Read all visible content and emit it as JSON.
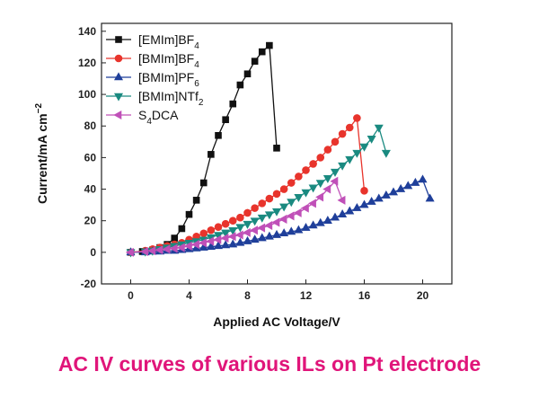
{
  "caption": "AC IV curves of various ILs on Pt electrode",
  "chart_data": {
    "type": "line",
    "xlabel": "Applied AC Voltage/V",
    "ylabel_main": "Current/mA cm",
    "ylabel_sup": "−2",
    "xlim": [
      -2,
      22
    ],
    "ylim": [
      -20,
      145
    ],
    "xticks": [
      0,
      4,
      8,
      12,
      16,
      20
    ],
    "yticks": [
      -20,
      0,
      20,
      40,
      60,
      80,
      100,
      120,
      140
    ],
    "legend_position": "top-left",
    "grid": false,
    "series": [
      {
        "name": "[EMIm]BF",
        "name_sub": "4",
        "name_tail": "",
        "color": "#111111",
        "marker": "square",
        "x": [
          0,
          0.8,
          1.5,
          2,
          2.5,
          3,
          3.5,
          4,
          4.5,
          5,
          5.5,
          6,
          6.5,
          7,
          7.5,
          8,
          8.5,
          9,
          9.5,
          10
        ],
        "y": [
          0,
          0.5,
          1.5,
          3,
          5,
          9,
          15,
          24,
          33,
          44,
          62,
          74,
          84,
          94,
          106,
          113,
          121,
          127,
          131,
          66
        ]
      },
      {
        "name": "[BMIm]BF",
        "name_sub": "4",
        "name_tail": "",
        "color": "#e8342c",
        "marker": "circle",
        "x": [
          0,
          1,
          1.5,
          2,
          2.5,
          3,
          3.5,
          4,
          4.5,
          5,
          5.5,
          6,
          6.5,
          7,
          7.5,
          8,
          8.5,
          9,
          9.5,
          10,
          10.5,
          11,
          11.5,
          12,
          12.5,
          13,
          13.5,
          14,
          14.5,
          15,
          15.5,
          16
        ],
        "y": [
          0,
          1,
          2,
          3,
          4,
          5,
          6,
          8,
          10,
          12,
          14,
          16,
          18,
          20,
          22,
          25,
          28,
          31,
          34,
          37,
          40,
          44,
          48,
          52,
          56,
          60,
          65,
          70,
          75,
          79,
          85,
          39
        ]
      },
      {
        "name": "[BMIm]PF",
        "name_sub": "6",
        "name_tail": "",
        "color": "#1f3f9a",
        "marker": "triangle-up",
        "x": [
          0,
          1,
          1.5,
          2,
          2.5,
          3,
          3.5,
          4,
          4.5,
          5,
          5.5,
          6,
          6.5,
          7,
          7.5,
          8,
          8.5,
          9,
          9.5,
          10,
          10.5,
          11,
          11.5,
          12,
          12.5,
          13,
          13.5,
          14,
          14.5,
          15,
          15.5,
          16,
          16.5,
          17,
          17.5,
          18,
          18.5,
          19,
          19.5,
          20,
          20.5
        ],
        "y": [
          0,
          0,
          0.5,
          0.5,
          1,
          1,
          1.5,
          2,
          2.5,
          3,
          3.5,
          4,
          4.5,
          5,
          6,
          7,
          8,
          9,
          10,
          11,
          12,
          13,
          14,
          15.5,
          17,
          18.5,
          20,
          22,
          24,
          26,
          28,
          30,
          32,
          34,
          36,
          38,
          40,
          42,
          44,
          46,
          34
        ]
      },
      {
        "name": "[BMIm]NTf",
        "name_sub": "2",
        "name_tail": "",
        "color": "#1a8a80",
        "marker": "triangle-down",
        "x": [
          0,
          1,
          1.5,
          2,
          2.5,
          3,
          3.5,
          4,
          4.5,
          5,
          5.5,
          6,
          6.5,
          7,
          7.5,
          8,
          8.5,
          9,
          9.5,
          10,
          10.5,
          11,
          11.5,
          12,
          12.5,
          13,
          13.5,
          14,
          14.5,
          15,
          15.5,
          16,
          16.5,
          17,
          17.5
        ],
        "y": [
          0,
          0.5,
          1,
          2,
          3,
          4,
          5,
          6,
          7,
          8,
          9.5,
          11,
          12.5,
          14,
          16,
          18,
          20,
          22,
          24,
          26,
          29,
          32,
          35,
          38,
          41,
          44,
          47,
          51,
          55,
          59,
          63,
          67,
          72,
          79,
          63
        ]
      },
      {
        "name": "S",
        "name_sub": "4",
        "name_tail": "DCA",
        "color": "#c050b8",
        "marker": "triangle-left",
        "x": [
          0,
          1,
          1.5,
          2,
          2.5,
          3,
          3.5,
          4,
          4.5,
          5,
          5.5,
          6,
          6.5,
          7,
          7.5,
          8,
          8.5,
          9,
          9.5,
          10,
          10.5,
          11,
          11.5,
          12,
          12.5,
          13,
          13.5,
          14,
          14.5
        ],
        "y": [
          0,
          0.5,
          1,
          1.5,
          2,
          2.5,
          3,
          4,
          5,
          6,
          7,
          8,
          9,
          10,
          11,
          12.5,
          14,
          15.5,
          17,
          19,
          21,
          23,
          25,
          28,
          31,
          35,
          40,
          45,
          33
        ]
      }
    ]
  }
}
